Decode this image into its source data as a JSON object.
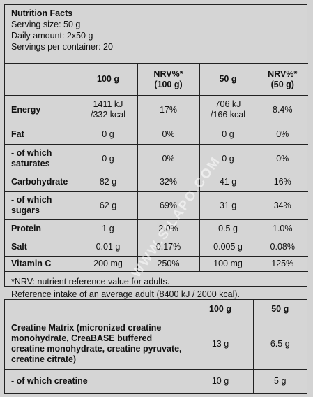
{
  "header": {
    "title": "Nutrition Facts",
    "serving_size": "Serving size: 50 g",
    "daily_amount": "Daily amount: 2x50 g",
    "servings": "Servings per container: 20"
  },
  "nutrition_table": {
    "columns": [
      "",
      "100 g",
      "NRV%*\n(100 g)",
      "50 g",
      "NRV%*\n(50 g)"
    ],
    "rows": [
      {
        "label": "Energy",
        "v1": "1411 kJ\n/332 kcal",
        "n1": "17%",
        "v2": "706 kJ\n/166 kcal",
        "n2": "8.4%"
      },
      {
        "label": "Fat",
        "v1": "0 g",
        "n1": "0%",
        "v2": "0 g",
        "n2": "0%"
      },
      {
        "label": "- of which\nsaturates",
        "v1": "0 g",
        "n1": "0%",
        "v2": "0 g",
        "n2": "0%"
      },
      {
        "label": "Carbohydrate",
        "v1": "82 g",
        "n1": "32%",
        "v2": "41 g",
        "n2": "16%"
      },
      {
        "label": "- of which\nsugars",
        "v1": "62 g",
        "n1": "69%",
        "v2": "31 g",
        "n2": "34%"
      },
      {
        "label": "Protein",
        "v1": "1 g",
        "n1": "2.0%",
        "v2": "0.5 g",
        "n2": "1.0%"
      },
      {
        "label": "Salt",
        "v1": "0.01 g",
        "n1": "0.17%",
        "v2": "0.005 g",
        "n2": "0.08%"
      },
      {
        "label": "Vitamin C",
        "v1": "200 mg",
        "n1": "250%",
        "v2": "100 mg",
        "n2": "125%"
      }
    ]
  },
  "footnotes": {
    "nrv": "*NRV: nutrient reference value for adults.",
    "reference": "Reference intake of an average adult (8400 kJ / 2000 kcal)."
  },
  "creatine_table": {
    "columns": [
      "",
      "100 g",
      "50 g"
    ],
    "rows": [
      {
        "label": "Creatine Matrix (micronized creatine\nmonohydrate, CreaBASE buffered\ncreatine monohydrate, creatine pyruvate,\ncreatine citrate)",
        "v1": "13 g",
        "v2": "6.5 g"
      },
      {
        "label": "- of which creatine",
        "v1": "10 g",
        "v2": "5 g"
      }
    ]
  },
  "watermark": "WWW.SILAPO.COM"
}
